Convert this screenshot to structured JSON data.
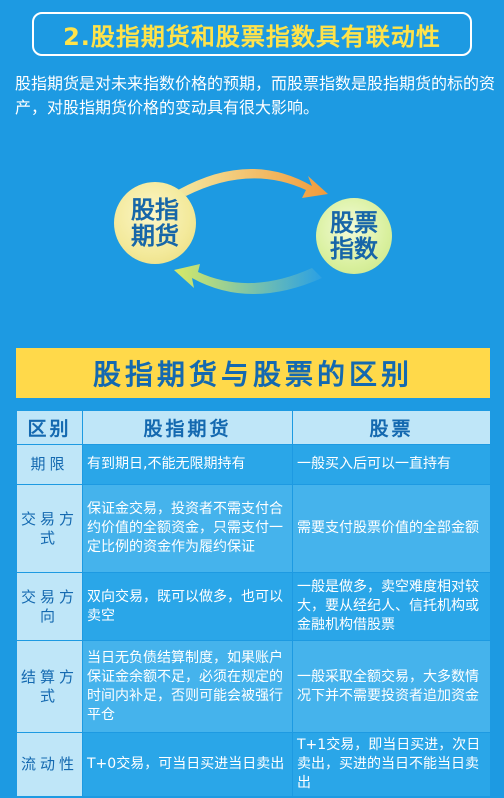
{
  "heading": "2.股指期货和股票指数具有联动性",
  "intro": "股指期货是对未来指数价格的预期，而股票指数是股指期货的标的资产，对股指期货价格的变动具有很大影响。",
  "diagram": {
    "left_circle_line1": "股指",
    "left_circle_line2": "期货",
    "right_circle_line1": "股票",
    "right_circle_line2": "指数"
  },
  "table_title": "股指期货与股票的区别",
  "table": {
    "headers": [
      "区别",
      "股指期货",
      "股票"
    ],
    "rows": [
      {
        "label": "期限",
        "futures": "有到期日,不能无限期持有",
        "stock": "一般买入后可以一直持有"
      },
      {
        "label": "交易方式",
        "futures": "保证金交易，投资者不需支付合约价值的全额资金，只需支付一定比例的资金作为履约保证",
        "stock": "需要支付股票价值的全部金额"
      },
      {
        "label": "交易方向",
        "futures": "双向交易，既可以做多，也可以卖空",
        "stock": "一般是做多，卖空难度相对较大，要从经纪人、信托机构或金融机构借股票"
      },
      {
        "label": "结算方式",
        "futures": "当日无负债结算制度，如果账户保证金余额不足，必须在规定的时间内补足，否则可能会被强行平仓",
        "stock": "一般采取全额交易，大多数情况下并不需要投资者追加资金"
      },
      {
        "label": "流动性",
        "futures": "T+0交易，可当日买进当日卖出",
        "stock": "T+1交易，即当日买进，次日卖出，买进的当日不能当日卖出"
      }
    ]
  }
}
